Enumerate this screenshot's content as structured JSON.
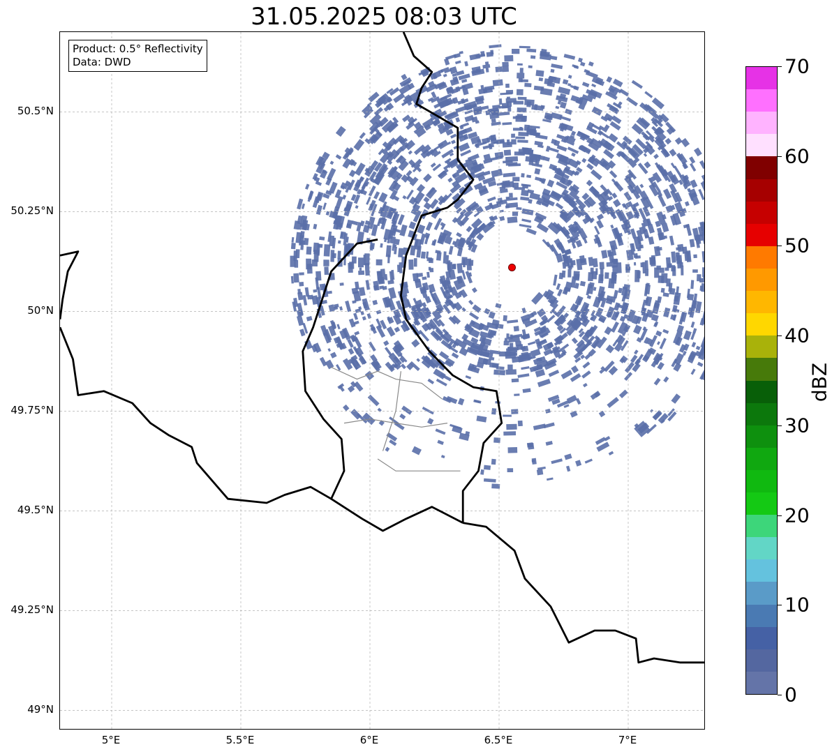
{
  "title": "31.05.2025 08:03 UTC",
  "info": {
    "product": "Product: 0.5° Reflectivity",
    "data": "Data: DWD"
  },
  "map": {
    "extent": {
      "lon": [
        4.8,
        7.3
      ],
      "lat": [
        48.95,
        50.7
      ]
    },
    "lat_ticks": [
      "49°N",
      "49.25°N",
      "49.5°N",
      "49.75°N",
      "50°N",
      "50.25°N",
      "50.5°N"
    ],
    "lon_ticks": [
      "5°E",
      "5.5°E",
      "6°E",
      "6.5°E",
      "7°E"
    ],
    "radar_site": {
      "lon": 6.55,
      "lat": 50.11,
      "color": "#ee0000"
    },
    "echo_color": "#5a6fa8",
    "gridlines": true
  },
  "colorbar": {
    "label": "dBZ",
    "min": 0,
    "max": 70,
    "tick_labels": [
      "0",
      "10",
      "20",
      "30",
      "40",
      "50",
      "60",
      "70"
    ],
    "colors": [
      "#6474a8",
      "#5467a0",
      "#4561a5",
      "#4a7ab3",
      "#5a9bc8",
      "#64c2de",
      "#62d6c6",
      "#3dd67a",
      "#14c914",
      "#10b910",
      "#10a810",
      "#0e900e",
      "#0c780c",
      "#085f08",
      "#477a0a",
      "#a9b20a",
      "#ffd700",
      "#ffb700",
      "#ff9900",
      "#ff7a00",
      "#e60000",
      "#c60000",
      "#a60000",
      "#800000",
      "#ffe0ff",
      "#ffb3ff",
      "#ff70ff",
      "#e632e6"
    ]
  }
}
